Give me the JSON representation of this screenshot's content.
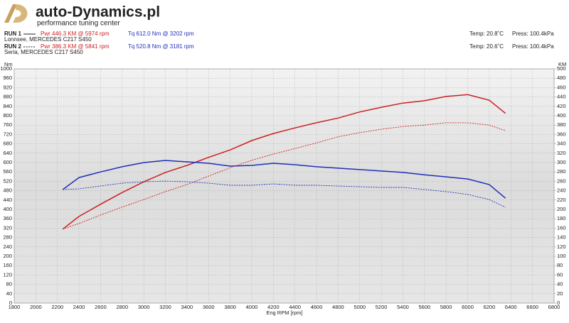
{
  "header": {
    "brand": "auto-Dynamics.pl",
    "tagline": "performance tuning center",
    "runs": [
      {
        "label": "RUN 1",
        "vehicle": "Lonnsee, MERCEDES C217 S450",
        "temp": "Temp: 20.8˚C",
        "press": "Press: 100.4kPa"
      },
      {
        "label": "RUN 2",
        "vehicle": "Seria, MERCEDES C217 S450",
        "temp": "Temp: 20.6˚C",
        "press": "Press: 100.4kPa"
      }
    ]
  },
  "chart_data": {
    "type": "line",
    "xlabel": "Eng RPM [rpm]",
    "ylabel": "Nm",
    "y2label": "KM",
    "grid": true,
    "x": [
      2250,
      2400,
      2600,
      2800,
      3000,
      3200,
      3400,
      3600,
      3800,
      4000,
      4200,
      4400,
      4600,
      4800,
      5000,
      5200,
      5400,
      5600,
      5800,
      6000,
      6200,
      6350
    ],
    "series": [
      {
        "name": "Pwr 446.3 KM @ 5974 rpm",
        "color": "#cc1f1f",
        "line_style": "solid",
        "axis": "y2",
        "values": [
          158,
          185,
          211,
          236,
          259,
          279,
          294,
          311,
          327,
          347,
          362,
          374,
          385,
          395,
          408,
          418,
          427,
          432,
          441,
          445,
          433,
          405
        ]
      },
      {
        "name": "Tq 612.0 Nm @ 3202 rpm",
        "color": "#1f2fb8",
        "line_style": "solid",
        "values": [
          485,
          536,
          560,
          582,
          600,
          609,
          603,
          597,
          585,
          588,
          597,
          591,
          582,
          576,
          570,
          564,
          558,
          548,
          539,
          530,
          506,
          448
        ]
      },
      {
        "name": "Pwr 386.3 KM @ 5841 rpm",
        "color": "#cc1f1f",
        "line_style": "dashed",
        "axis": "y2",
        "values": [
          158,
          170,
          188,
          205,
          221,
          238,
          253,
          271,
          289,
          305,
          318,
          330,
          342,
          355,
          364,
          371,
          377,
          380,
          385,
          385,
          380,
          368
        ]
      },
      {
        "name": "Tq 520.8 Nm @ 3181 rpm",
        "color": "#1f2fb8",
        "line_style": "dashed",
        "values": [
          485,
          488,
          500,
          512,
          518,
          521,
          518,
          512,
          503,
          503,
          509,
          503,
          503,
          500,
          497,
          494,
          494,
          485,
          476,
          464,
          442,
          409
        ]
      }
    ],
    "xlim": [
      1800,
      6800
    ],
    "xticks": [
      1800,
      2000,
      2200,
      2400,
      2600,
      2800,
      3000,
      3200,
      3400,
      3600,
      3800,
      4000,
      4200,
      4400,
      4600,
      4800,
      5000,
      5200,
      5400,
      5600,
      5800,
      6000,
      6200,
      6400,
      6600,
      6800
    ],
    "ylim": [
      0,
      1000
    ],
    "yticks": [
      0,
      40,
      80,
      120,
      160,
      200,
      240,
      280,
      320,
      360,
      400,
      440,
      480,
      520,
      560,
      600,
      640,
      680,
      720,
      760,
      800,
      840,
      880,
      920,
      960,
      1000
    ],
    "y2lim": [
      0,
      500
    ],
    "y2ticks": [
      0,
      20,
      40,
      60,
      80,
      100,
      120,
      140,
      160,
      180,
      200,
      220,
      240,
      260,
      280,
      300,
      320,
      340,
      360,
      380,
      400,
      420,
      440,
      460,
      480,
      500
    ]
  }
}
